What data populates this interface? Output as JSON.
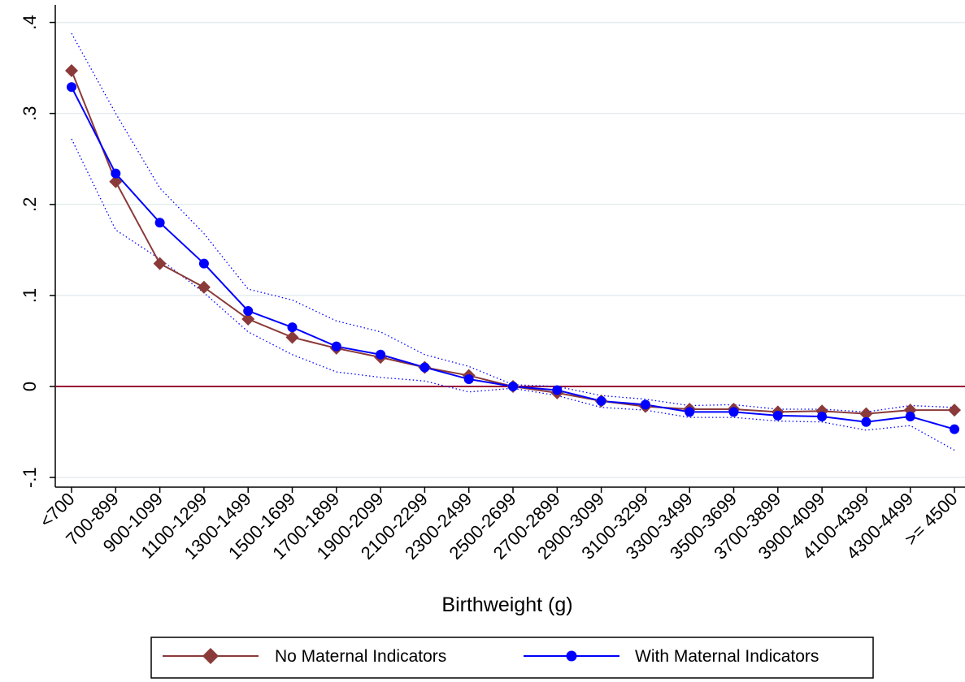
{
  "chart_data": {
    "type": "line",
    "xlabel": "Birthweight (g)",
    "ylabel": "",
    "ylim": [
      -0.12,
      0.41
    ],
    "yticks": [
      -0.1,
      0,
      0.1,
      0.2,
      0.3,
      0.4
    ],
    "ytick_labels": [
      "-.1",
      "0",
      ".1",
      ".2",
      ".3",
      ".4"
    ],
    "grid": true,
    "legend_placement": "bottom",
    "reference_line": {
      "y": 0,
      "color": "#990033"
    },
    "categories": [
      "<700",
      "700-899",
      "900-1099",
      "1100-1299",
      "1300-1499",
      "1500-1699",
      "1700-1899",
      "1900-2099",
      "2100-2299",
      "2300-2499",
      "2500-2699",
      "2700-2899",
      "2900-3099",
      "3100-3299",
      "3300-3499",
      "3500-3699",
      "3700-3899",
      "3900-4099",
      "4100-4399",
      "4300-4499",
      ">= 4500"
    ],
    "series": [
      {
        "name": "No Maternal Indicators",
        "color": "#8b3a3a",
        "marker": "diamond",
        "values": [
          0.347,
          0.225,
          0.135,
          0.109,
          0.074,
          0.054,
          0.042,
          0.032,
          0.021,
          0.012,
          0.0,
          -0.007,
          -0.016,
          -0.022,
          -0.025,
          -0.025,
          -0.028,
          -0.027,
          -0.03,
          -0.026,
          -0.026
        ]
      },
      {
        "name": "With Maternal Indicators",
        "color": "#0000ff",
        "marker": "circle",
        "values": [
          0.329,
          0.234,
          0.18,
          0.135,
          0.083,
          0.065,
          0.044,
          0.035,
          0.021,
          0.008,
          0.0,
          -0.004,
          -0.016,
          -0.02,
          -0.028,
          -0.028,
          -0.032,
          -0.033,
          -0.039,
          -0.033,
          -0.047
        ]
      }
    ],
    "confidence_band": {
      "color": "#0000ff",
      "style": "dotted",
      "upper": [
        0.388,
        0.3,
        0.218,
        0.168,
        0.107,
        0.095,
        0.072,
        0.06,
        0.035,
        0.022,
        0.002,
        0.0,
        -0.01,
        -0.014,
        -0.021,
        -0.02,
        -0.025,
        -0.025,
        -0.028,
        -0.021,
        -0.023
      ],
      "lower": [
        0.272,
        0.172,
        0.14,
        0.103,
        0.06,
        0.035,
        0.016,
        0.01,
        0.006,
        -0.006,
        -0.002,
        -0.01,
        -0.023,
        -0.026,
        -0.034,
        -0.034,
        -0.038,
        -0.039,
        -0.048,
        -0.043,
        -0.07
      ]
    }
  }
}
